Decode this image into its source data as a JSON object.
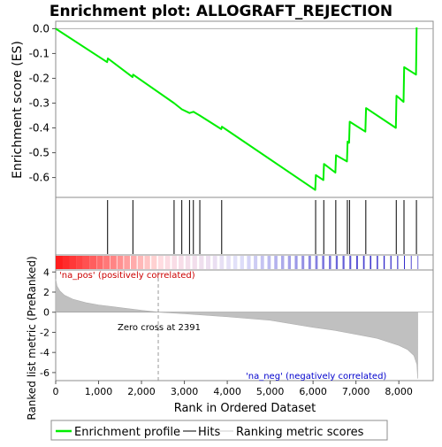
{
  "chart_data": [
    {
      "type": "line",
      "title": "Enrichment plot: ALLOGRAFT_REJECTION",
      "ylabel": "Enrichment score (ES)",
      "ylim": [
        -0.68,
        0.03
      ],
      "yticks": [
        "0.0",
        "-0.1",
        "-0.2",
        "-0.3",
        "-0.4",
        "-0.5",
        "-0.6"
      ],
      "ytick_values": [
        0.0,
        -0.1,
        -0.2,
        -0.3,
        -0.4,
        -0.5,
        -0.6
      ],
      "xlim": [
        0,
        8800
      ],
      "color": "#00ee00",
      "series": [
        {
          "name": "Enrichment profile",
          "x": [
            0,
            1200,
            1215,
            1790,
            1805,
            2760,
            2940,
            3120,
            3210,
            3360,
            3860,
            3875,
            6050,
            6065,
            6240,
            6255,
            6520,
            6535,
            6790,
            6805,
            6840,
            6855,
            7220,
            7235,
            7930,
            7945,
            8110,
            8125,
            8400,
            8415
          ],
          "y": [
            0.0,
            -0.135,
            -0.12,
            -0.195,
            -0.185,
            -0.3,
            -0.325,
            -0.34,
            -0.335,
            -0.35,
            -0.405,
            -0.395,
            -0.65,
            -0.59,
            -0.61,
            -0.545,
            -0.58,
            -0.51,
            -0.535,
            -0.455,
            -0.46,
            -0.375,
            -0.415,
            -0.32,
            -0.4,
            -0.27,
            -0.295,
            -0.155,
            -0.185,
            0.005
          ]
        }
      ],
      "hits": [
        1210,
        1800,
        2760,
        2940,
        3120,
        3210,
        3360,
        3870,
        6060,
        6250,
        6530,
        6800,
        6850,
        7230,
        7940,
        8120,
        8410
      ]
    },
    {
      "type": "area",
      "ylabel": "Ranked list metric (PreRanked)",
      "xlabel": "Rank in Ordered Dataset",
      "ylim": [
        -6.8,
        4.2
      ],
      "xlim": [
        0,
        8800
      ],
      "xticks": [
        "0",
        "1,000",
        "2,000",
        "3,000",
        "4,000",
        "5,000",
        "6,000",
        "7,000",
        "8,000"
      ],
      "xtick_values": [
        0,
        1000,
        2000,
        3000,
        4000,
        5000,
        6000,
        7000,
        8000
      ],
      "yticks": [
        "4",
        "2",
        "0",
        "-2",
        "-4",
        "-6"
      ],
      "ytick_values": [
        4,
        2,
        0,
        -2,
        -4,
        -6
      ],
      "series": [
        {
          "name": "Ranking metric scores",
          "x": [
            0,
            30,
            100,
            200,
            400,
            700,
            1000,
            1500,
            2000,
            2391,
            3000,
            4000,
            5000,
            6000,
            6500,
            7000,
            7500,
            8000,
            8200,
            8350,
            8420,
            8440
          ],
          "y": [
            3.3,
            2.6,
            2.1,
            1.7,
            1.3,
            0.95,
            0.72,
            0.45,
            0.2,
            0.0,
            -0.15,
            -0.45,
            -0.8,
            -1.5,
            -1.8,
            -2.2,
            -2.6,
            -3.3,
            -3.7,
            -4.3,
            -5.2,
            -6.6
          ]
        }
      ],
      "zero_cross_label": "Zero cross at 2391",
      "zero_cross": 2391,
      "pos_label": "'na_pos' (positively correlated)",
      "neg_label": "'na_neg' (negatively correlated)",
      "pos_color": "#ff0000",
      "neg_color": "#0000ff"
    }
  ],
  "legend": {
    "items": [
      {
        "label": "Enrichment profile",
        "color": "#00ee00"
      },
      {
        "label": "Hits",
        "color": "#000000"
      },
      {
        "label": "Ranking metric scores",
        "color": "#cccccc"
      }
    ]
  }
}
